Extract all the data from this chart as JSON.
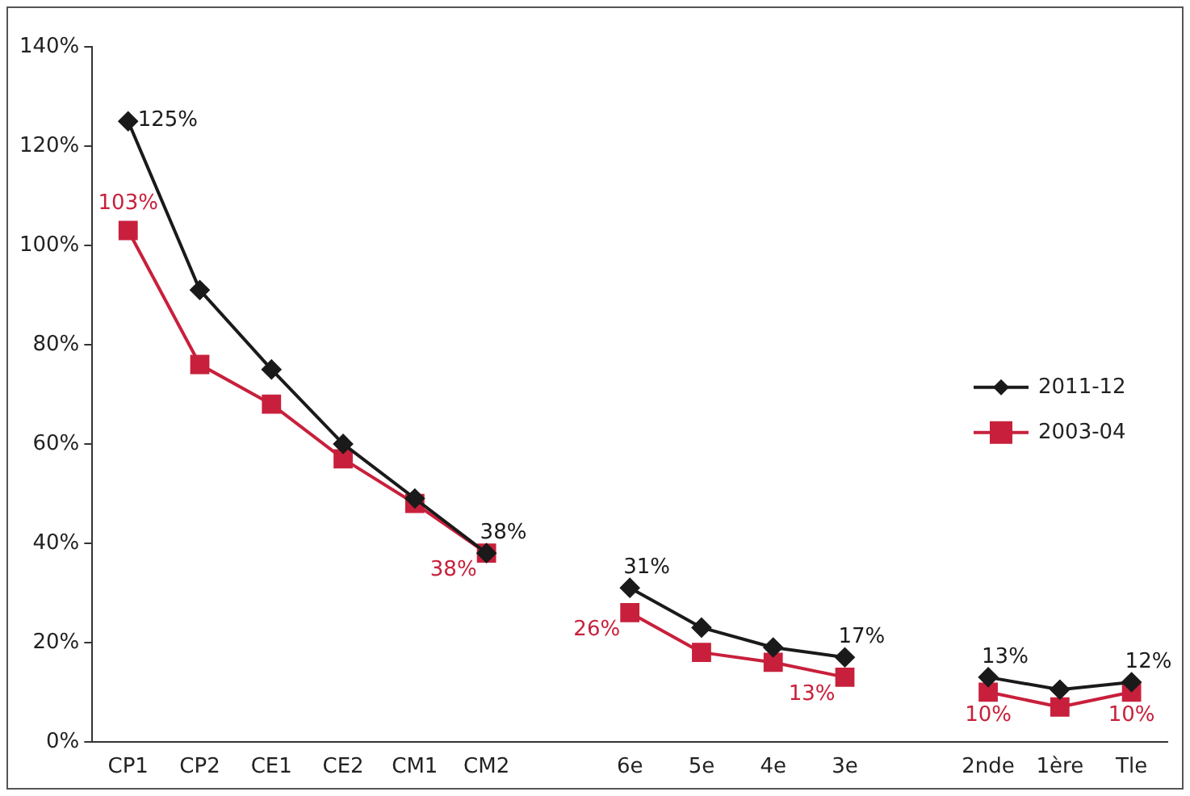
{
  "chart_data": {
    "type": "line",
    "categories": [
      "CP1",
      "CP2",
      "CE1",
      "CE2",
      "CM1",
      "CM2",
      null,
      "6e",
      "5e",
      "4e",
      "3e",
      null,
      "2nde",
      "1ère",
      "Tle"
    ],
    "series": [
      {
        "name": "2011-12",
        "color": "#1a1a1a",
        "marker": "diamond",
        "values": [
          125,
          91,
          75,
          60,
          49,
          38,
          null,
          31,
          23,
          19,
          17,
          null,
          13,
          10.5,
          12
        ],
        "value_labels": [
          "125%",
          null,
          null,
          null,
          null,
          "38%",
          null,
          "31%",
          null,
          null,
          "17%",
          null,
          "13%",
          null,
          "12%"
        ]
      },
      {
        "name": "2003-04",
        "color": "#c8203c",
        "marker": "square",
        "values": [
          103,
          76,
          68,
          57,
          48,
          38,
          null,
          26,
          18,
          16,
          13,
          null,
          10,
          7,
          10
        ],
        "value_labels": [
          "103%",
          null,
          null,
          null,
          null,
          "38%",
          null,
          "26%",
          null,
          null,
          "13%",
          null,
          "10%",
          null,
          "10%"
        ]
      }
    ],
    "ylim": [
      0,
      140
    ],
    "yticks": [
      {
        "value": 0,
        "label": "0%"
      },
      {
        "value": 20,
        "label": "20%"
      },
      {
        "value": 40,
        "label": "40%"
      },
      {
        "value": 60,
        "label": "60%"
      },
      {
        "value": 80,
        "label": "80%"
      },
      {
        "value": 100,
        "label": "100%"
      },
      {
        "value": 120,
        "label": "120%"
      },
      {
        "value": 140,
        "label": "140%"
      }
    ],
    "grid": false,
    "legend": "right",
    "line_style": "solid"
  }
}
